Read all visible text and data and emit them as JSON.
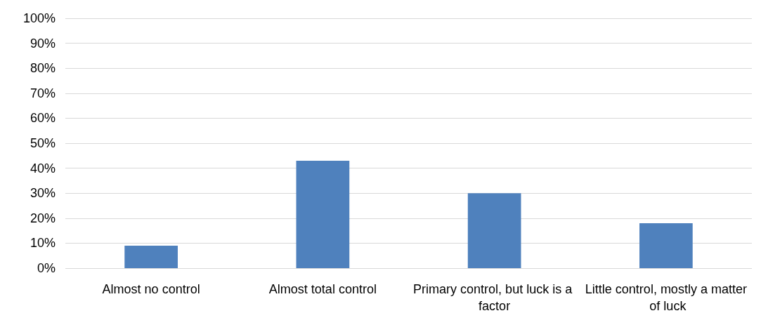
{
  "chart_data": {
    "type": "bar",
    "categories": [
      "Almost no control",
      "Almost total control",
      "Primary control, but luck is a factor",
      "Little control, mostly a matter of luck"
    ],
    "values": [
      9,
      43,
      30,
      18
    ],
    "color": "#4f81bd",
    "ylim": [
      0,
      100
    ],
    "yticks": [
      {
        "value": 0,
        "label": "0%"
      },
      {
        "value": 10,
        "label": "10%"
      },
      {
        "value": 20,
        "label": "20%"
      },
      {
        "value": 30,
        "label": "30%"
      },
      {
        "value": 40,
        "label": "40%"
      },
      {
        "value": 50,
        "label": "50%"
      },
      {
        "value": 60,
        "label": "60%"
      },
      {
        "value": 70,
        "label": "70%"
      },
      {
        "value": 80,
        "label": "80%"
      },
      {
        "value": 90,
        "label": "90%"
      },
      {
        "value": 100,
        "label": "100%"
      }
    ],
    "grid": "y"
  }
}
